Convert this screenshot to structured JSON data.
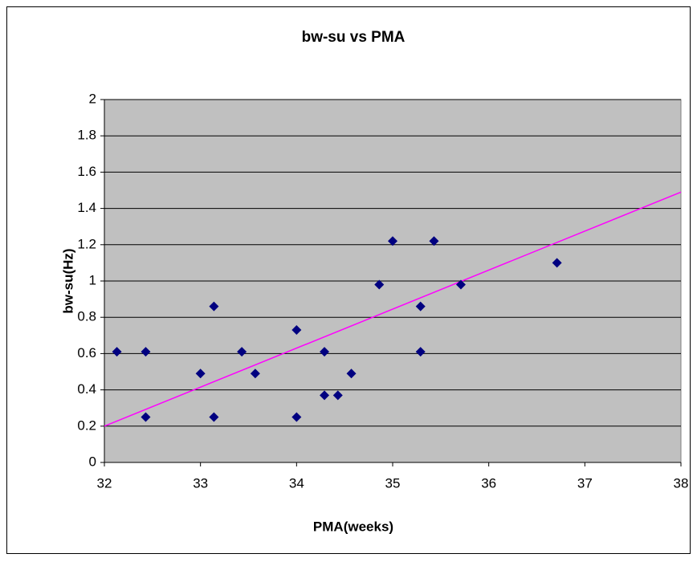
{
  "chart_data": {
    "type": "scatter",
    "title": "bw-su vs PMA",
    "x_label": "PMA(weeks)",
    "y_label": "bw-su(Hz)",
    "series": [
      {
        "name": "bw-su",
        "color": "#000080",
        "x": [
          32.13,
          32.43,
          32.43,
          33.0,
          33.14,
          33.14,
          33.43,
          33.57,
          34.0,
          34.0,
          34.29,
          34.29,
          34.43,
          34.57,
          34.86,
          35.0,
          35.29,
          35.29,
          35.43,
          35.71,
          36.71
        ],
        "values": [
          0.61,
          0.61,
          0.25,
          0.49,
          0.86,
          0.25,
          0.61,
          0.49,
          0.73,
          0.25,
          0.61,
          0.37,
          0.37,
          0.49,
          0.98,
          1.22,
          0.86,
          0.61,
          1.22,
          0.98,
          1.1
        ]
      }
    ],
    "trendline": {
      "color": "#ff00ff",
      "x": [
        32,
        38
      ],
      "values": [
        0.2,
        1.49
      ]
    },
    "xlim": [
      32,
      38
    ],
    "xticks": [
      32,
      33,
      34,
      35,
      36,
      37,
      38
    ],
    "ylim": [
      0,
      2
    ],
    "yticks": [
      0,
      0.2,
      0.4,
      0.6,
      0.8,
      1,
      1.2,
      1.4,
      1.6,
      1.8,
      2
    ],
    "grid": true,
    "plot_background": "#c0c0c0"
  }
}
